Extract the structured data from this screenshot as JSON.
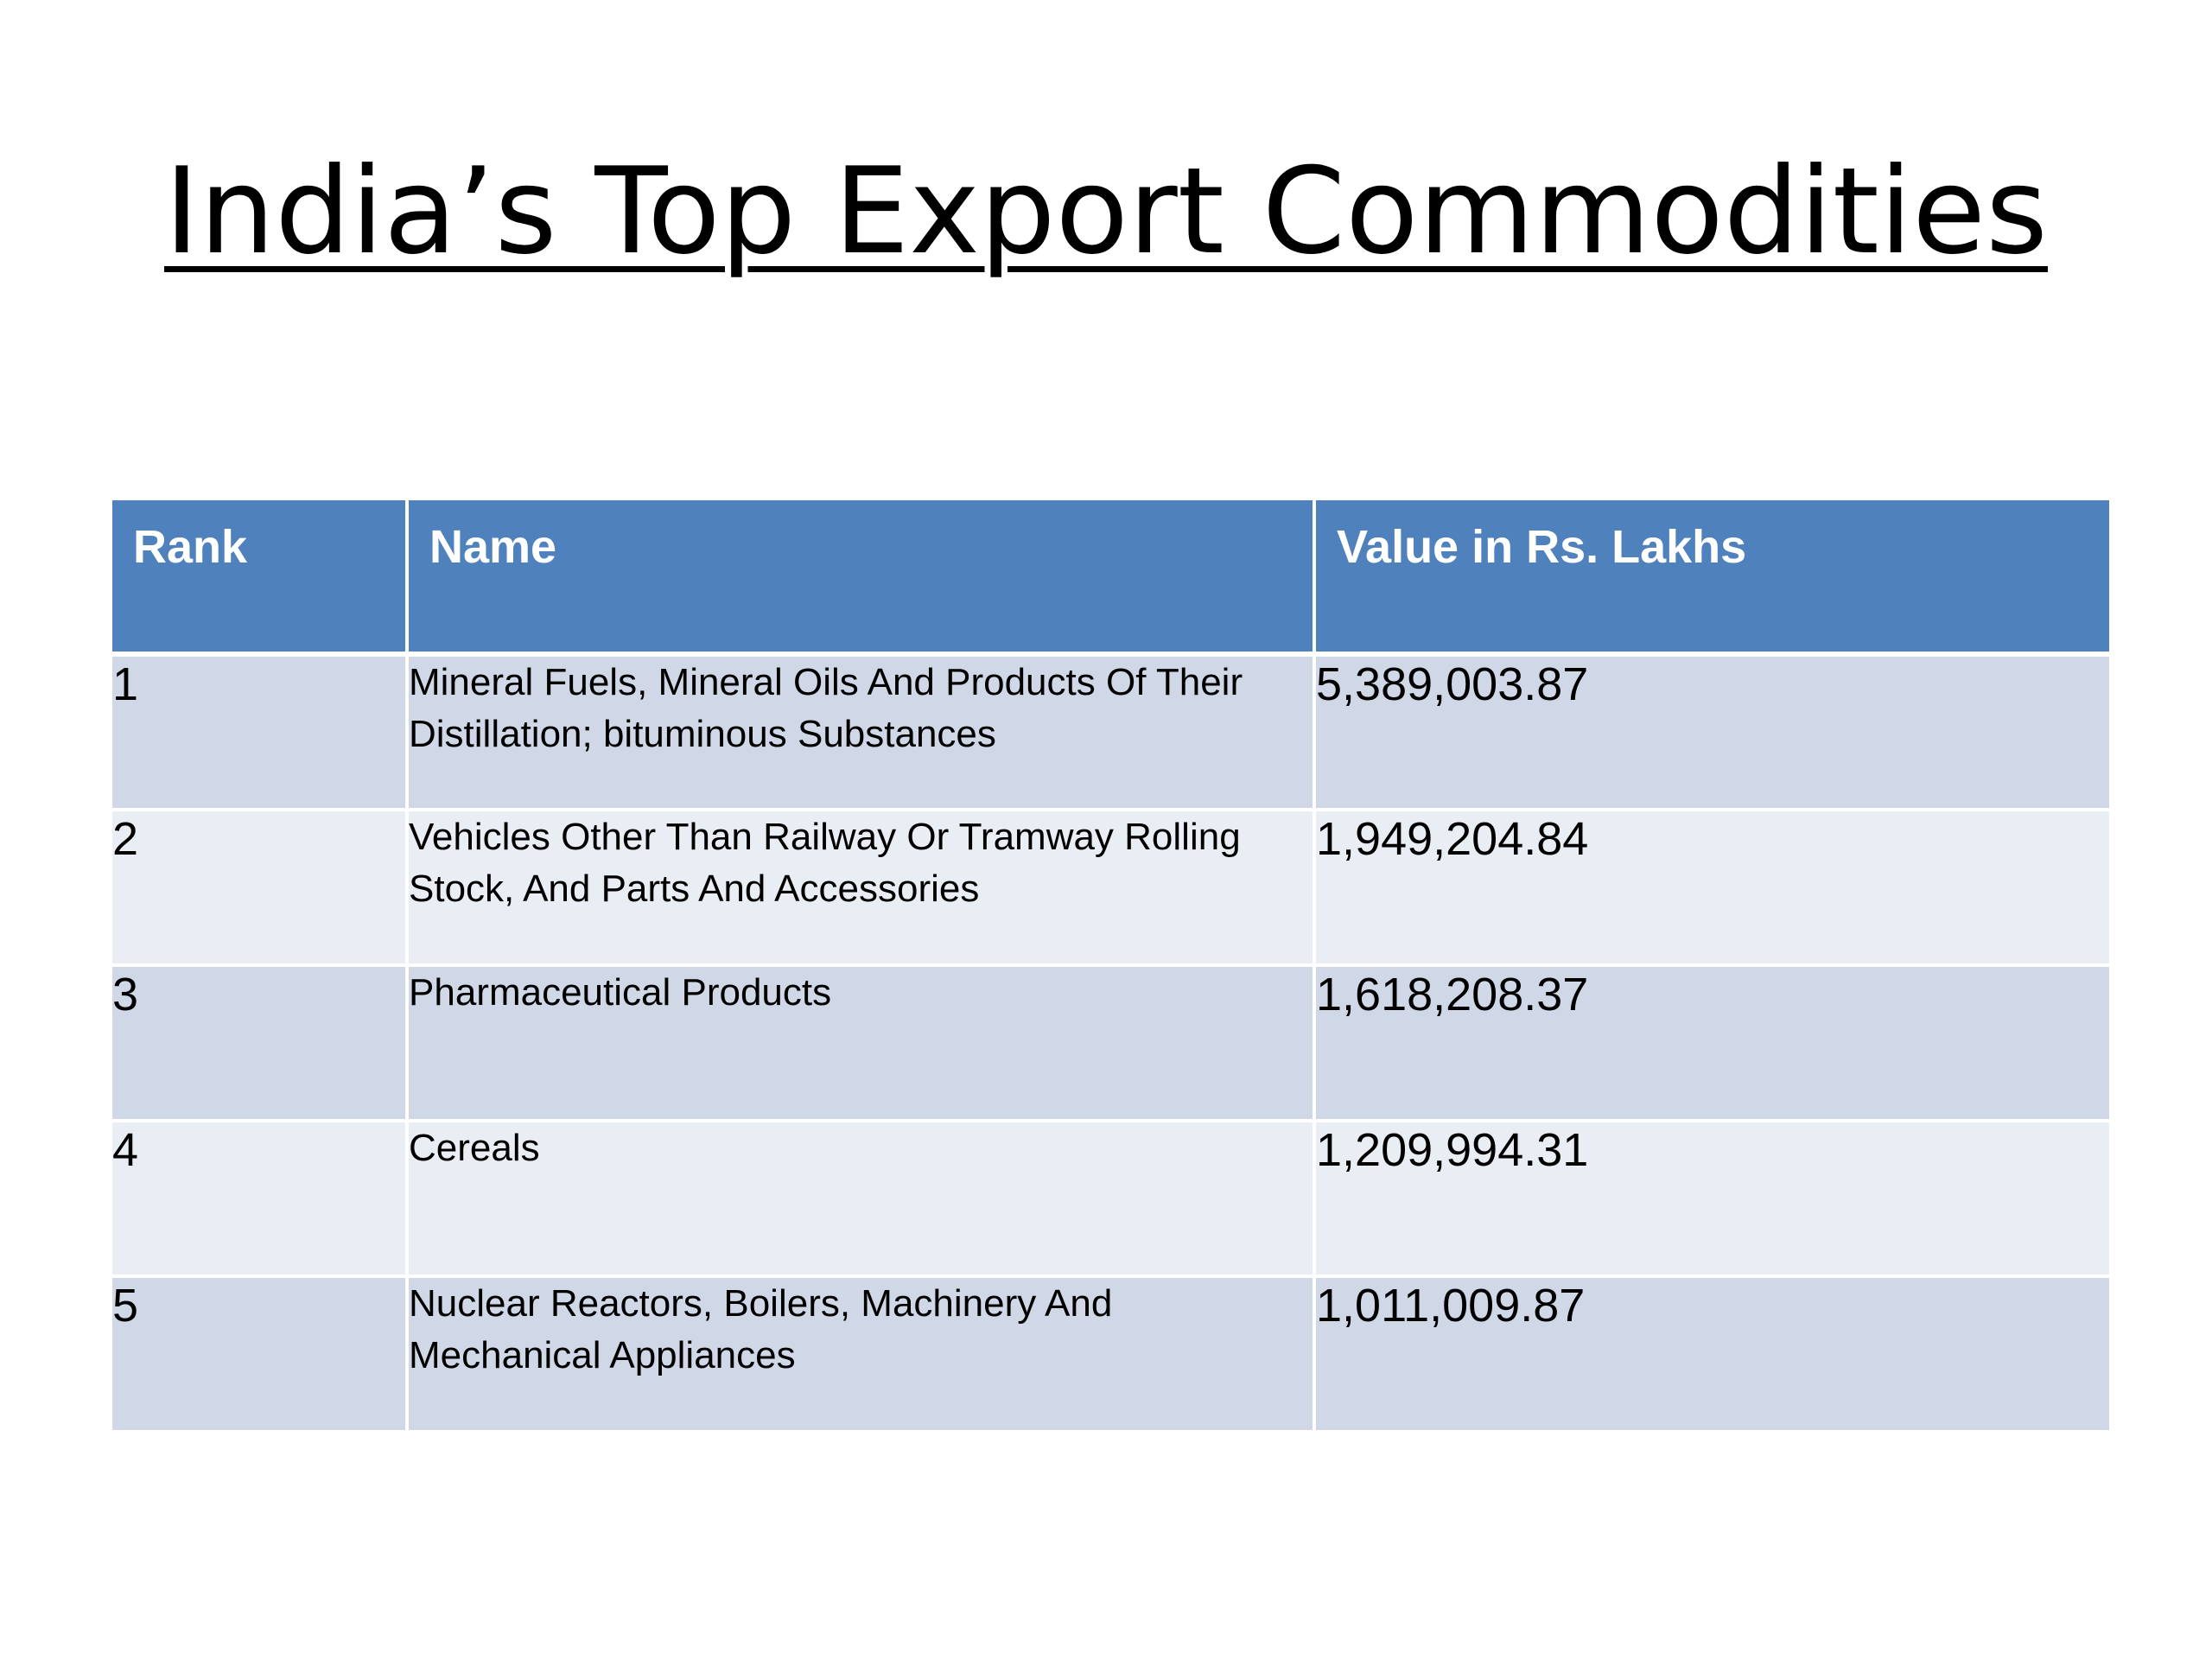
{
  "slide": {
    "title": "India’s Top Export Commodities"
  },
  "table": {
    "headers": [
      "Rank",
      "Name",
      "Value in Rs. Lakhs"
    ],
    "rows": [
      {
        "rank": "1",
        "name": "Mineral Fuels, Mineral Oils And Products Of Their Distillation; bituminous Substances",
        "value": "5,389,003.87"
      },
      {
        "rank": "2",
        "name": "Vehicles Other Than Railway Or Tramway Rolling Stock, And Parts And Accessories",
        "value": "1,949,204.84"
      },
      {
        "rank": "3",
        "name": "Pharmaceutical Products",
        "value": "1,618,208.37"
      },
      {
        "rank": "4",
        "name": "Cereals",
        "value": "1,209,994.31"
      },
      {
        "rank": "5",
        "name": "Nuclear Reactors, Boilers, Machinery And Mechanical Appliances",
        "value": "1,011,009.87"
      }
    ]
  },
  "colors": {
    "header_bg": "#4f81bd",
    "row_odd_bg": "#d0d8e8",
    "row_even_bg": "#e9edf4"
  }
}
